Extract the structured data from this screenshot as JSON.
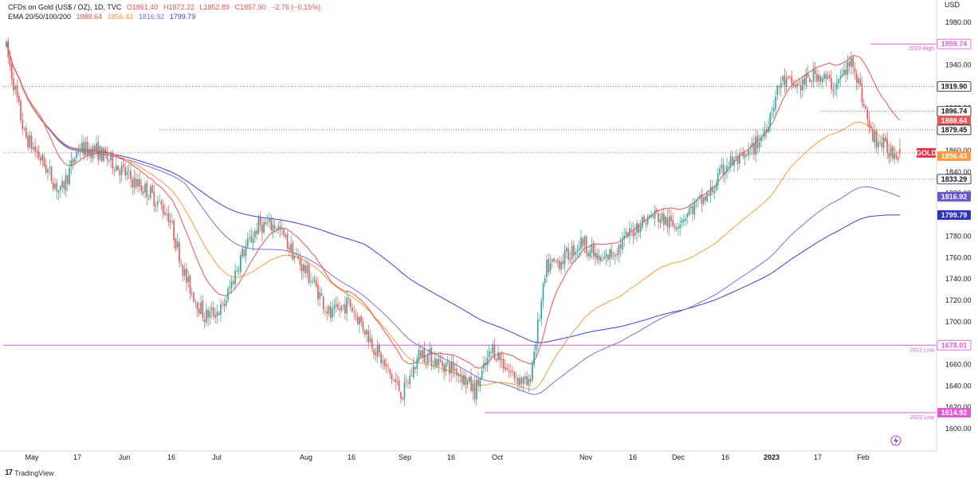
{
  "legend": {
    "symbol": "CFDs on Gold (US$ / OZ), 1D, TVC",
    "open": "O1861.40",
    "high": "H1872.22",
    "low": "L1852.89",
    "close": "C1857.90",
    "change": "−2.76 (−0.15%)",
    "ema_label": "EMA 20/50/100/200",
    "ema20": "1888.64",
    "ema50": "1856.43",
    "ema100": "1816.92",
    "ema200": "1799.79"
  },
  "brand": {
    "logo": "17",
    "name": "TradingView"
  },
  "colors": {
    "up": "#26a69a",
    "down": "#ef5350",
    "ema20": "#ef5350",
    "ema50": "#ff9a3c",
    "ema100": "#7a6fe0",
    "ema200": "#3b3fd6",
    "horizontal_line": "#e05cd6",
    "dotted_level": "#555555",
    "price_tag_gold": "#e0344d",
    "ema20_tag": "#ef5350",
    "ema50_tag": "#ff9a3c",
    "ema100_tag": "#6a55c9",
    "ema200_tag": "#2f33b8",
    "level_tag": "#131722"
  },
  "chart_data": {
    "type": "candlestick",
    "currency": "USD",
    "x_ticks": [
      "May",
      "17",
      "Jun",
      "16",
      "Jul",
      "Aug",
      "16",
      "Sep",
      "16",
      "Oct",
      "Nov",
      "16",
      "Dec",
      "16",
      "2023",
      "17",
      "Feb"
    ],
    "y_ticks": [
      1600,
      1620,
      1640,
      1660,
      1680,
      1700,
      1720,
      1740,
      1760,
      1780,
      1800,
      1820,
      1840,
      1860,
      1880,
      1900,
      1920,
      1940,
      1960,
      1980
    ],
    "ylim": [
      1586,
      2003
    ],
    "series": [
      {
        "name": "GOLD",
        "kind": "ohlc",
        "anchors": [
          [
            0,
            1955
          ],
          [
            10,
            1875
          ],
          [
            20,
            1850
          ],
          [
            30,
            1820
          ],
          [
            40,
            1862
          ],
          [
            50,
            1860
          ],
          [
            60,
            1848
          ],
          [
            70,
            1832
          ],
          [
            80,
            1820
          ],
          [
            90,
            1800
          ],
          [
            100,
            1738
          ],
          [
            110,
            1705
          ],
          [
            120,
            1712
          ],
          [
            130,
            1760
          ],
          [
            140,
            1790
          ],
          [
            150,
            1790
          ],
          [
            160,
            1762
          ],
          [
            170,
            1738
          ],
          [
            180,
            1705
          ],
          [
            190,
            1718
          ],
          [
            200,
            1690
          ],
          [
            210,
            1658
          ],
          [
            220,
            1632
          ],
          [
            230,
            1672
          ],
          [
            240,
            1662
          ],
          [
            250,
            1655
          ],
          [
            260,
            1635
          ],
          [
            270,
            1675
          ],
          [
            280,
            1652
          ],
          [
            290,
            1640
          ],
          [
            300,
            1750
          ],
          [
            310,
            1760
          ],
          [
            320,
            1775
          ],
          [
            330,
            1755
          ],
          [
            340,
            1770
          ],
          [
            350,
            1790
          ],
          [
            360,
            1800
          ],
          [
            370,
            1790
          ],
          [
            380,
            1805
          ],
          [
            390,
            1818
          ],
          [
            400,
            1848
          ],
          [
            410,
            1852
          ],
          [
            420,
            1875
          ],
          [
            430,
            1925
          ],
          [
            440,
            1920
          ],
          [
            450,
            1932
          ],
          [
            460,
            1920
          ],
          [
            470,
            1945
          ],
          [
            480,
            1875
          ],
          [
            490,
            1860
          ],
          [
            496,
            1858
          ]
        ],
        "last": {
          "open": 1861.4,
          "high": 1872.22,
          "low": 1852.89,
          "close": 1857.9
        }
      },
      {
        "name": "EMA 20",
        "value": 1888.64
      },
      {
        "name": "EMA 50",
        "value": 1856.43
      },
      {
        "name": "EMA 100",
        "value": 1816.92
      },
      {
        "name": "EMA 200",
        "value": 1799.79
      }
    ],
    "horizontal_lines": [
      {
        "label": "2023 High",
        "value": 1959.74
      },
      {
        "label": "2021 Low",
        "value": 1678.01
      },
      {
        "label": "2022 Low",
        "value": 1614.92
      }
    ],
    "dotted_levels": [
      1919.9,
      1896.74,
      1879.45,
      1833.29
    ],
    "current_price": {
      "label": "GOLD",
      "value": 1857.9
    },
    "price_tags": [
      "1959.74",
      "1919.90",
      "1896.74",
      "1888.64",
      "1879.45",
      "1856.43",
      "1833.29",
      "1816.92",
      "1799.79",
      "1678.01",
      "1614.92"
    ],
    "grid": false
  }
}
